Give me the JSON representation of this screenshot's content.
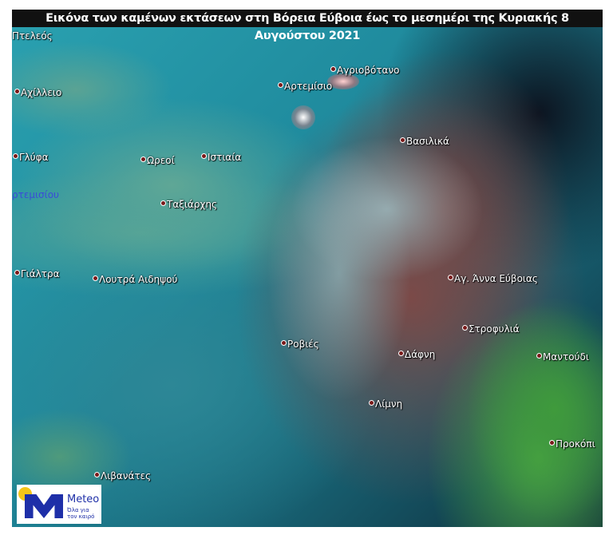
{
  "title": "Εικόνα των καμένων εκτάσεων στη Βόρεια Εύβοια έως το μεσημέρι της Κυριακής 8 Αυγούστου 2021",
  "places": [
    {
      "name": "Πτελεός"
    },
    {
      "name": "Αχίλλειο"
    },
    {
      "name": "Αρτεμίσιο"
    },
    {
      "name": "Αγριοβότανο"
    },
    {
      "name": "Βασιλικά"
    },
    {
      "name": "Γλύφα"
    },
    {
      "name": "Ωρεοί"
    },
    {
      "name": "Ιστιαία"
    },
    {
      "name": "ρτεμισίου"
    },
    {
      "name": "Ταξιάρχης"
    },
    {
      "name": "Γιάλτρα"
    },
    {
      "name": "Λουτρά Αιδηψού"
    },
    {
      "name": "Αγ. Άννα Εύβοιας"
    },
    {
      "name": "Στροφυλιά"
    },
    {
      "name": "Μαντούδι"
    },
    {
      "name": "Ροβιές"
    },
    {
      "name": "Δάφνη"
    },
    {
      "name": "Λίμνη"
    },
    {
      "name": "Προκόπι"
    },
    {
      "name": "Λιβανάτες"
    }
  ],
  "logo": {
    "brand": "Meteo",
    "tagline_1": "Όλα για",
    "tagline_2": "τον καιρό",
    "color": "#1e2fa8",
    "sun": "#f5c518"
  }
}
